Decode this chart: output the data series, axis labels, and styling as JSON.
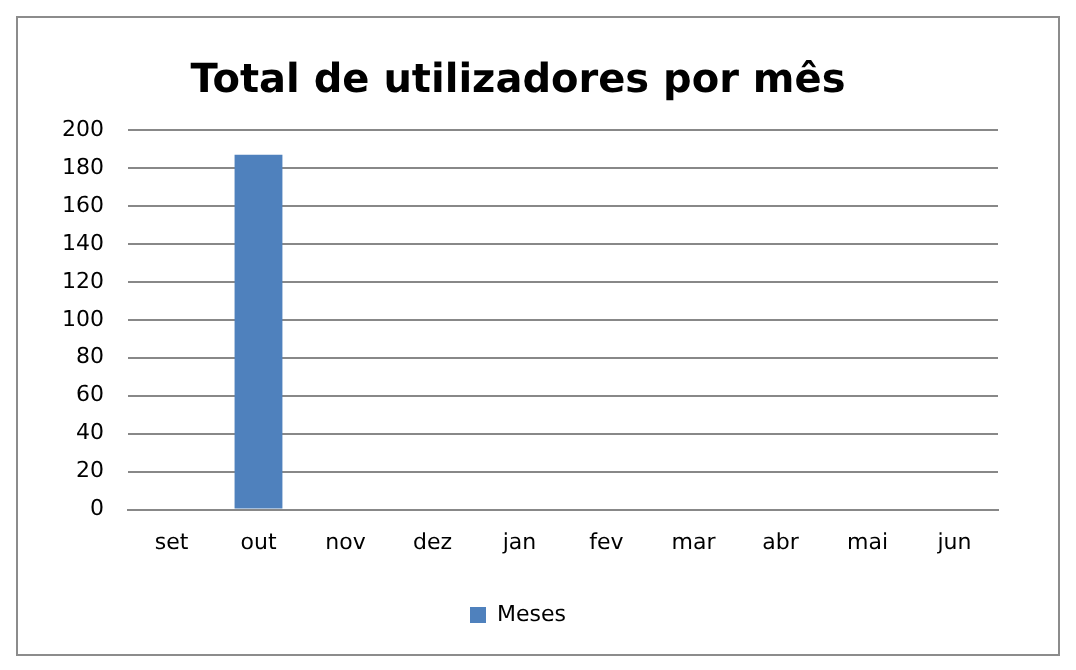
{
  "chart_data": {
    "type": "bar",
    "title": "Total de utilizadores por mês",
    "categories": [
      "set",
      "out",
      "nov",
      "dez",
      "jan",
      "fev",
      "mar",
      "abr",
      "mai",
      "jun"
    ],
    "series": [
      {
        "name": "Meses",
        "color": "#4f81bd",
        "values": [
          0,
          187,
          0,
          0,
          0,
          0,
          0,
          0,
          0,
          0
        ]
      }
    ],
    "ylim": [
      0,
      200
    ],
    "yticks": [
      0,
      20,
      40,
      60,
      80,
      100,
      120,
      140,
      160,
      180,
      200
    ],
    "grid": "y",
    "legend": "bottom"
  }
}
